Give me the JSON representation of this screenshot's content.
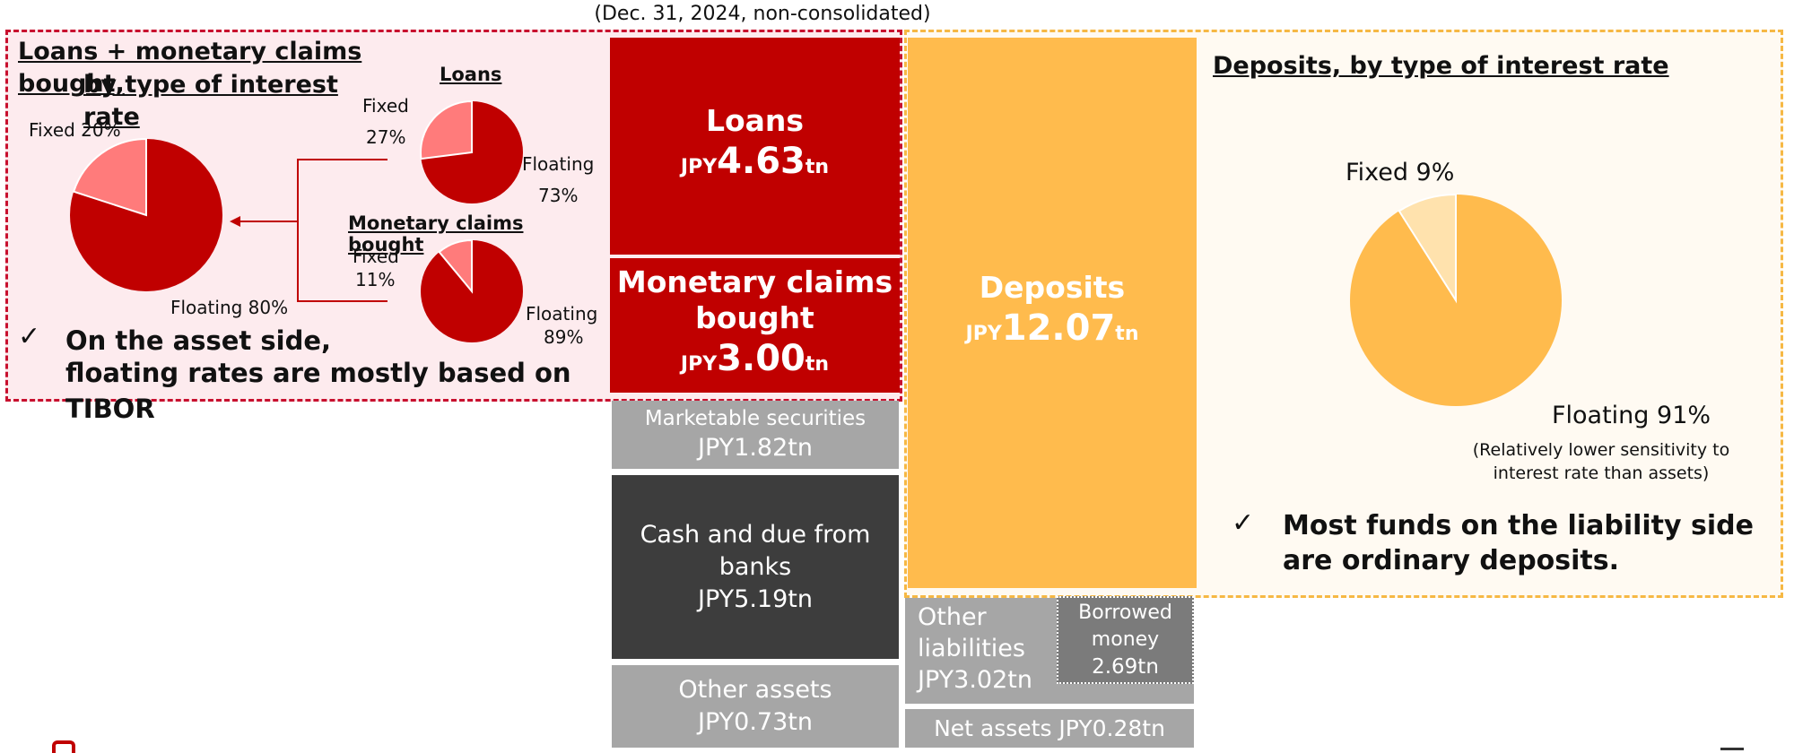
{
  "subtitle": "(Dec. 31, 2024, non-consolidated)",
  "colors": {
    "asset_red": "#c00000",
    "pie_light_red": "#ff7b7b",
    "deposits_yellow": "#ffbb4d",
    "pie_light_yellow": "#ffe2ad",
    "gray": "#a6a6a6",
    "dark": "#3d3d3d"
  },
  "asset_panel": {
    "heading_line1": "Loans + monetary claims bought,",
    "heading_line2": "by type of interest rate",
    "combined_pie": {
      "fixed_label": "Fixed 20%",
      "floating_label": "Floating 80%",
      "fixed_pct": 20,
      "floating_pct": 80
    },
    "loans_pie": {
      "title": "Loans",
      "fixed_label": "Fixed",
      "fixed_value": "27%",
      "floating_label": "Floating",
      "floating_value": "73%",
      "fixed_pct": 27,
      "floating_pct": 73
    },
    "mcb_pie": {
      "title": "Monetary claims bought",
      "fixed_label": "Fixed",
      "fixed_value": "11%",
      "floating_label": "Floating",
      "floating_value": "89%",
      "fixed_pct": 11,
      "floating_pct": 89
    },
    "check": "✓",
    "bullet_line1": "On the asset side,",
    "bullet_line2": "floating rates are mostly based on TIBOR"
  },
  "assets": {
    "loans": {
      "name": "Loans",
      "unit_prefix": "JPY",
      "amount": "4.63",
      "unit_suffix": "tn"
    },
    "mcb": {
      "name_line1": "Monetary claims",
      "name_line2": "bought",
      "unit_prefix": "JPY",
      "amount": "3.00",
      "unit_suffix": "tn"
    },
    "securities": {
      "name": "Marketable securities",
      "value": "JPY1.82tn"
    },
    "cash": {
      "name_line1": "Cash and due from",
      "name_line2": "banks",
      "value": "JPY5.19tn"
    },
    "other": {
      "name": "Other assets",
      "value": "JPY0.73tn"
    }
  },
  "liabilities": {
    "deposits": {
      "name": "Deposits",
      "unit_prefix": "JPY",
      "amount": "12.07",
      "unit_suffix": "tn"
    },
    "other": {
      "name_line1": "Other",
      "name_line2": "liabilities",
      "value": "JPY3.02tn"
    },
    "borrowed": {
      "name_line1": "Borrowed",
      "name_line2": "money",
      "value": "2.69tn"
    },
    "net_assets": {
      "value": "Net assets JPY0.28tn"
    }
  },
  "liability_panel": {
    "heading": "Deposits, by type of interest rate",
    "pie": {
      "fixed_label": "Fixed 9%",
      "floating_label": "Floating 91%",
      "fixed_pct": 9,
      "floating_pct": 91
    },
    "note_line1": "(Relatively lower sensitivity to",
    "note_line2": "interest rate than assets)",
    "check": "✓",
    "bullet_line1": "Most funds on the liability side",
    "bullet_line2": "are ordinary deposits."
  }
}
